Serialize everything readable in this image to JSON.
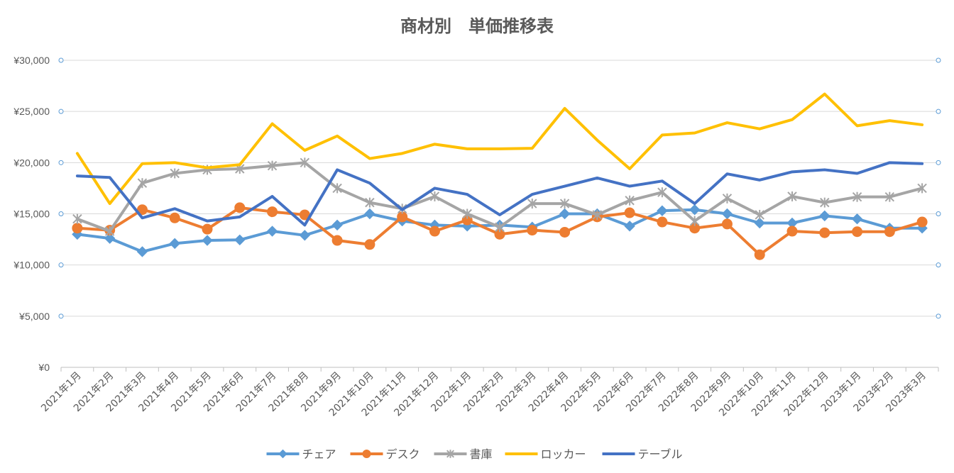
{
  "chart_data": {
    "type": "line",
    "title": "商材別　単価推移表",
    "xlabel": "",
    "ylabel": "",
    "ylim": [
      0,
      30000
    ],
    "yticks": [
      "¥0",
      "¥5,000",
      "¥10,000",
      "¥15,000",
      "¥20,000",
      "¥25,000",
      "¥30,000"
    ],
    "grid": true,
    "legend_position": "bottom",
    "categories": [
      "2021年1月",
      "2021年2月",
      "2021年3月",
      "2021年4月",
      "2021年5月",
      "2021年6月",
      "2021年7月",
      "2021年8月",
      "2021年9月",
      "2021年10月",
      "2021年11月",
      "2021年12月",
      "2022年1月",
      "2022年2月",
      "2022年3月",
      "2022年4月",
      "2022年5月",
      "2022年6月",
      "2022年7月",
      "2022年8月",
      "2022年9月",
      "2022年10月",
      "2022年11月",
      "2022年12月",
      "2023年1月",
      "2023年2月",
      "2023年3月"
    ],
    "series": [
      {
        "name": "チェア",
        "color": "#5B9BD5",
        "marker": "diamond",
        "values": [
          13000,
          12600,
          11300,
          12100,
          12400,
          12450,
          13300,
          12900,
          13900,
          15000,
          14300,
          13900,
          13800,
          13900,
          13700,
          15000,
          15000,
          13800,
          15300,
          15400,
          15000,
          14100,
          14100,
          14800,
          14500,
          13600,
          13600
        ]
      },
      {
        "name": "デスク",
        "color": "#ED7D31",
        "marker": "circle",
        "values": [
          13600,
          13400,
          15400,
          14600,
          13500,
          15600,
          15200,
          14900,
          12400,
          12000,
          14700,
          13300,
          14400,
          13000,
          13400,
          13200,
          14700,
          15100,
          14200,
          13600,
          14000,
          11000,
          13300,
          13150,
          13250,
          13250,
          14200
        ]
      },
      {
        "name": "書庫",
        "color": "#A5A5A5",
        "marker": "star",
        "values": [
          14500,
          13300,
          18000,
          18950,
          19300,
          19400,
          19700,
          20000,
          17500,
          16100,
          15500,
          16700,
          15000,
          13700,
          16000,
          16000,
          14900,
          16300,
          17100,
          14300,
          16500,
          14900,
          16700,
          16100,
          16650,
          16650,
          17500
        ]
      },
      {
        "name": "ロッカー",
        "color": "#FFC000",
        "marker": "none",
        "values": [
          20900,
          16000,
          19900,
          20000,
          19500,
          19800,
          23800,
          21200,
          22600,
          20400,
          20900,
          21800,
          21350,
          21350,
          21400,
          25300,
          22200,
          19400,
          22700,
          22900,
          23900,
          23300,
          24200,
          26700,
          23600,
          24100,
          23700
        ]
      },
      {
        "name": "テーブル",
        "color": "#4472C4",
        "marker": "none",
        "values": [
          18700,
          18550,
          14600,
          15500,
          14300,
          14700,
          16700,
          13900,
          19300,
          18000,
          15400,
          17500,
          16900,
          14900,
          16900,
          17700,
          18500,
          17700,
          18200,
          16000,
          18900,
          18300,
          19100,
          19300,
          18950,
          20000,
          19900
        ]
      }
    ]
  }
}
